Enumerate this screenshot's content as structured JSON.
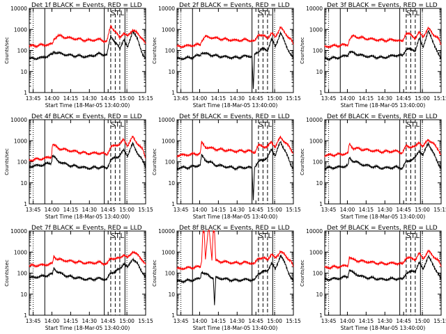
{
  "chart_data": [
    {
      "type": "line",
      "title": "Det 1f BLACK = Events, RED = LLD",
      "xlabel": "Start Time (18-Mar-05 13:40:00)",
      "ylabel": "Counts/sec",
      "yscale": "log",
      "ylim": [
        1,
        10000
      ],
      "x_ticks": [
        "13:45",
        "14:00",
        "14:15",
        "14:30",
        "14:45",
        "15:00",
        "15:15"
      ],
      "y_ticks": [
        "1",
        "10",
        "100",
        "1000",
        "10000"
      ],
      "markers": [
        "S",
        "T",
        "L"
      ],
      "series": [
        {
          "color": "#000000",
          "x": [
            0,
            10,
            18,
            19,
            22,
            30,
            45,
            55,
            60,
            63,
            70,
            73,
            76,
            80,
            84,
            88,
            90
          ],
          "y": [
            40,
            45,
            65,
            90,
            75,
            60,
            50,
            70,
            60,
            500,
            120,
            350,
            130,
            900,
            300,
            60,
            40
          ]
        },
        {
          "color": "#ff0000",
          "x": [
            0,
            10,
            18,
            19,
            22,
            30,
            45,
            55,
            60,
            63,
            70,
            73,
            76,
            80,
            84,
            88,
            90
          ],
          "y": [
            160,
            180,
            200,
            350,
            500,
            400,
            300,
            330,
            260,
            1500,
            400,
            700,
            450,
            1000,
            600,
            350,
            200
          ]
        }
      ]
    },
    {
      "type": "line",
      "title": "Det 2f BLACK = Events, RED = LLD",
      "xlabel": "Start Time (18-Mar-05 13:40:00)",
      "ylabel": "Counts/sec",
      "yscale": "log",
      "ylim": [
        1,
        10000
      ],
      "x_ticks": [
        "13:45",
        "14:00",
        "14:15",
        "14:30",
        "14:45",
        "15:00",
        "15:15"
      ],
      "y_ticks": [
        "1",
        "10",
        "100",
        "1000",
        "10000"
      ],
      "markers": [
        "S",
        "T",
        "L"
      ],
      "series": [
        {
          "color": "#000000",
          "x": [
            0,
            10,
            18,
            19,
            22,
            30,
            45,
            55,
            58,
            59,
            60,
            65,
            70,
            73,
            76,
            80,
            84,
            88,
            90
          ],
          "y": [
            40,
            45,
            60,
            80,
            70,
            55,
            45,
            55,
            50,
            1.5,
            60,
            120,
            100,
            350,
            150,
            700,
            200,
            60,
            40
          ]
        },
        {
          "color": "#ff0000",
          "x": [
            0,
            10,
            18,
            19,
            22,
            30,
            45,
            55,
            60,
            63,
            70,
            73,
            76,
            80,
            84,
            88,
            90
          ],
          "y": [
            150,
            170,
            190,
            300,
            450,
            380,
            300,
            320,
            260,
            600,
            400,
            650,
            420,
            1300,
            600,
            350,
            190
          ]
        }
      ]
    },
    {
      "type": "line",
      "title": "Det 3f BLACK = Events, RED = LLD",
      "xlabel": "Start Time (18-Mar-05 13:40:00)",
      "ylabel": "Counts/sec",
      "yscale": "log",
      "ylim": [
        1,
        10000
      ],
      "x_ticks": [
        "13:45",
        "14:00",
        "14:15",
        "14:30",
        "14:45",
        "15:00",
        "15:15"
      ],
      "y_ticks": [
        "1",
        "10",
        "100",
        "1000",
        "10000"
      ],
      "markers": [
        "S",
        "T",
        "L"
      ],
      "series": [
        {
          "color": "#000000",
          "x": [
            0,
            10,
            18,
            19,
            22,
            30,
            45,
            55,
            60,
            63,
            70,
            73,
            76,
            80,
            84,
            88,
            90
          ],
          "y": [
            40,
            45,
            60,
            90,
            75,
            55,
            45,
            60,
            55,
            120,
            100,
            350,
            150,
            800,
            250,
            60,
            40
          ]
        },
        {
          "color": "#ff0000",
          "x": [
            0,
            10,
            18,
            19,
            22,
            30,
            45,
            55,
            60,
            63,
            70,
            73,
            76,
            80,
            84,
            88,
            90
          ],
          "y": [
            150,
            170,
            190,
            330,
            480,
            380,
            300,
            320,
            260,
            700,
            400,
            700,
            450,
            1100,
            600,
            350,
            180
          ]
        }
      ]
    },
    {
      "type": "line",
      "title": "Det 4f BLACK = Events, RED = LLD",
      "xlabel": "Start Time (18-Mar-05 13:40:00)",
      "ylabel": "Counts/sec",
      "yscale": "log",
      "ylim": [
        1,
        10000
      ],
      "x_ticks": [
        "13:45",
        "14:00",
        "14:15",
        "14:30",
        "14:45",
        "15:00",
        "15:15"
      ],
      "y_ticks": [
        "1",
        "10",
        "100",
        "1000",
        "10000"
      ],
      "markers": [
        "S",
        "T",
        "L"
      ],
      "series": [
        {
          "color": "#000000",
          "x": [
            0,
            10,
            17,
            18,
            22,
            30,
            45,
            55,
            60,
            63,
            70,
            73,
            76,
            80,
            84,
            88,
            90
          ],
          "y": [
            60,
            70,
            90,
            200,
            110,
            70,
            50,
            55,
            50,
            120,
            200,
            350,
            200,
            700,
            250,
            100,
            60
          ]
        },
        {
          "color": "#ff0000",
          "x": [
            0,
            10,
            17,
            18,
            22,
            30,
            45,
            55,
            60,
            63,
            70,
            73,
            76,
            80,
            84,
            88,
            90
          ],
          "y": [
            120,
            140,
            170,
            700,
            450,
            350,
            250,
            260,
            220,
            500,
            700,
            1100,
            600,
            1500,
            700,
            350,
            150
          ]
        }
      ]
    },
    {
      "type": "line",
      "title": "Det 5f BLACK = Events, RED = LLD",
      "xlabel": "Start Time (18-Mar-05 13:40:00)",
      "ylabel": "Counts/sec",
      "yscale": "log",
      "ylim": [
        1,
        10000
      ],
      "x_ticks": [
        "13:45",
        "14:00",
        "14:15",
        "14:30",
        "14:45",
        "15:00",
        "15:15"
      ],
      "y_ticks": [
        "1",
        "10",
        "100",
        "1000",
        "10000"
      ],
      "markers": [
        "S",
        "T",
        "L"
      ],
      "series": [
        {
          "color": "#000000",
          "x": [
            0,
            10,
            18,
            19,
            22,
            30,
            45,
            55,
            58,
            59,
            60,
            65,
            70,
            73,
            76,
            80,
            84,
            88,
            90
          ],
          "y": [
            50,
            55,
            70,
            200,
            120,
            70,
            50,
            55,
            50,
            1.5,
            60,
            120,
            150,
            400,
            200,
            900,
            300,
            70,
            50
          ]
        },
        {
          "color": "#ff0000",
          "x": [
            0,
            10,
            18,
            19,
            22,
            30,
            45,
            55,
            60,
            63,
            70,
            73,
            76,
            80,
            84,
            88,
            90
          ],
          "y": [
            200,
            220,
            250,
            800,
            500,
            400,
            320,
            330,
            280,
            600,
            500,
            900,
            500,
            1500,
            800,
            400,
            250
          ]
        }
      ]
    },
    {
      "type": "line",
      "title": "Det 6f BLACK = Events, RED = LLD",
      "xlabel": "Start Time (18-Mar-05 13:40:00)",
      "ylabel": "Counts/sec",
      "yscale": "log",
      "ylim": [
        1,
        10000
      ],
      "x_ticks": [
        "13:45",
        "14:00",
        "14:15",
        "14:30",
        "14:45",
        "15:00",
        "15:15"
      ],
      "y_ticks": [
        "1",
        "10",
        "100",
        "1000",
        "10000"
      ],
      "markers": [
        "S",
        "T",
        "L"
      ],
      "series": [
        {
          "color": "#000000",
          "x": [
            0,
            10,
            18,
            19,
            22,
            30,
            45,
            55,
            60,
            63,
            70,
            73,
            76,
            80,
            84,
            88,
            90
          ],
          "y": [
            50,
            55,
            65,
            150,
            110,
            70,
            50,
            55,
            50,
            100,
            150,
            350,
            200,
            800,
            250,
            80,
            50
          ]
        },
        {
          "color": "#ff0000",
          "x": [
            0,
            10,
            18,
            19,
            22,
            30,
            45,
            55,
            60,
            63,
            70,
            73,
            76,
            80,
            84,
            88,
            90
          ],
          "y": [
            200,
            220,
            250,
            700,
            450,
            380,
            300,
            320,
            270,
            550,
            500,
            900,
            500,
            1200,
            700,
            380,
            220
          ]
        }
      ]
    },
    {
      "type": "line",
      "title": "Det 7f BLACK = Events, RED = LLD",
      "xlabel": "Start Time (18-Mar-05 13:40:00)",
      "ylabel": "Counts/sec",
      "yscale": "log",
      "ylim": [
        1,
        10000
      ],
      "x_ticks": [
        "13:45",
        "14:00",
        "14:15",
        "14:30",
        "14:45",
        "15:00",
        "15:15"
      ],
      "y_ticks": [
        "1",
        "10",
        "100",
        "1000",
        "10000"
      ],
      "markers": [
        "S",
        "T",
        "L"
      ],
      "series": [
        {
          "color": "#000000",
          "x": [
            0,
            10,
            18,
            19,
            22,
            30,
            45,
            55,
            60,
            63,
            70,
            73,
            76,
            80,
            84,
            88,
            90
          ],
          "y": [
            60,
            70,
            90,
            180,
            110,
            70,
            50,
            55,
            50,
            100,
            150,
            300,
            180,
            500,
            250,
            100,
            60
          ]
        },
        {
          "color": "#ff0000",
          "x": [
            0,
            10,
            18,
            19,
            22,
            30,
            45,
            55,
            60,
            63,
            70,
            73,
            76,
            80,
            84,
            88,
            90
          ],
          "y": [
            220,
            240,
            280,
            650,
            450,
            380,
            300,
            320,
            270,
            500,
            500,
            800,
            500,
            1100,
            700,
            400,
            250
          ]
        }
      ]
    },
    {
      "type": "line",
      "title": "Det 8f BLACK = Events, RED = LLD",
      "xlabel": "Start Time (18-Mar-05 13:40:00)",
      "ylabel": "Counts/sec",
      "yscale": "log",
      "ylim": [
        1,
        10000
      ],
      "x_ticks": [
        "13:45",
        "14:00",
        "14:15",
        "14:30",
        "14:45",
        "15:00",
        "15:15"
      ],
      "y_ticks": [
        "1",
        "10",
        "100",
        "1000",
        "10000"
      ],
      "markers": [
        "S",
        "T",
        "L"
      ],
      "series": [
        {
          "color": "#000000",
          "x": [
            0,
            10,
            18,
            19,
            22,
            28,
            29,
            30,
            45,
            55,
            60,
            63,
            70,
            73,
            76,
            80,
            84,
            88,
            90
          ],
          "y": [
            40,
            45,
            55,
            120,
            90,
            60,
            3,
            60,
            45,
            50,
            45,
            100,
            130,
            300,
            150,
            700,
            250,
            60,
            40
          ]
        },
        {
          "color": "#ff0000",
          "x": [
            0,
            10,
            18,
            19,
            20,
            21,
            22,
            24,
            25,
            27,
            28,
            29,
            30,
            45,
            55,
            60,
            63,
            70,
            73,
            76,
            80,
            84,
            88,
            90
          ],
          "y": [
            160,
            180,
            200,
            350,
            10000,
            10000,
            450,
            10000,
            10000,
            400,
            10000,
            10000,
            380,
            300,
            320,
            270,
            550,
            450,
            800,
            500,
            1100,
            650,
            380,
            200
          ]
        }
      ]
    },
    {
      "type": "line",
      "title": "Det 9f BLACK = Events, RED = LLD",
      "xlabel": "Start Time (18-Mar-05 13:40:00)",
      "ylabel": "Counts/sec",
      "yscale": "log",
      "ylim": [
        1,
        10000
      ],
      "x_ticks": [
        "13:45",
        "14:00",
        "14:15",
        "14:30",
        "14:45",
        "15:00",
        "15:15"
      ],
      "y_ticks": [
        "1",
        "10",
        "100",
        "1000",
        "10000"
      ],
      "markers": [
        "S",
        "T",
        "L"
      ],
      "series": [
        {
          "color": "#000000",
          "x": [
            0,
            10,
            18,
            19,
            22,
            30,
            45,
            55,
            60,
            63,
            70,
            73,
            76,
            80,
            84,
            88,
            90
          ],
          "y": [
            50,
            55,
            70,
            150,
            100,
            65,
            50,
            55,
            50,
            100,
            130,
            300,
            160,
            600,
            250,
            80,
            50
          ]
        },
        {
          "color": "#ff0000",
          "x": [
            0,
            10,
            18,
            19,
            22,
            30,
            45,
            55,
            60,
            63,
            70,
            73,
            76,
            80,
            84,
            88,
            90
          ],
          "y": [
            180,
            200,
            230,
            600,
            420,
            360,
            280,
            300,
            260,
            550,
            450,
            850,
            480,
            1100,
            650,
            380,
            200
          ]
        }
      ]
    }
  ]
}
